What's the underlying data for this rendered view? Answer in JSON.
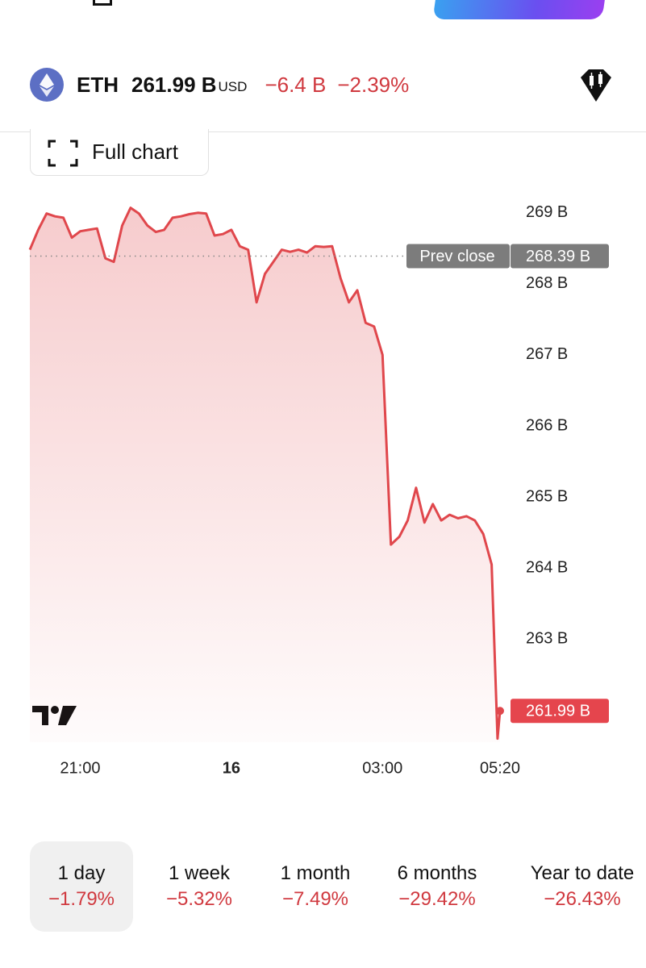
{
  "header": {
    "symbol": "ETH",
    "price": "261.99 B",
    "currency": "USD",
    "change": "−6.4 B",
    "change_pct": "−2.39%"
  },
  "full_chart_button": "Full chart",
  "chart_data": {
    "type": "line",
    "x": [
      "20:00",
      "20:10",
      "20:20",
      "20:30",
      "20:40",
      "20:50",
      "21:00",
      "21:10",
      "21:20",
      "21:30",
      "21:40",
      "21:50",
      "22:00",
      "22:10",
      "22:20",
      "22:30",
      "22:40",
      "22:50",
      "23:00",
      "23:10",
      "23:20",
      "23:30",
      "23:40",
      "23:50",
      "00:00",
      "00:10",
      "00:20",
      "00:30",
      "00:40",
      "00:50",
      "01:00",
      "01:10",
      "01:20",
      "01:30",
      "01:40",
      "01:50",
      "02:00",
      "02:10",
      "02:20",
      "02:30",
      "02:40",
      "02:50",
      "03:00",
      "03:10",
      "03:20",
      "03:30",
      "03:40",
      "03:50",
      "04:00",
      "04:10",
      "04:20",
      "04:30",
      "04:40",
      "04:50",
      "05:00",
      "05:10",
      "05:17",
      "05:20"
    ],
    "values": [
      268.48,
      268.76,
      268.99,
      268.95,
      268.93,
      268.65,
      268.74,
      268.76,
      268.78,
      268.36,
      268.31,
      268.82,
      269.07,
      268.99,
      268.82,
      268.73,
      268.76,
      268.93,
      268.95,
      268.98,
      269.0,
      268.99,
      268.68,
      268.7,
      268.76,
      268.53,
      268.48,
      267.74,
      268.14,
      268.31,
      268.48,
      268.45,
      268.48,
      268.44,
      268.53,
      268.52,
      268.53,
      268.08,
      267.74,
      267.91,
      267.45,
      267.4,
      267.0,
      264.33,
      264.44,
      264.67,
      265.13,
      264.64,
      264.9,
      264.67,
      264.75,
      264.7,
      264.73,
      264.67,
      264.48,
      264.05,
      261.6,
      261.99
    ],
    "color": "#e0474c",
    "last_value_label": "261.99 B",
    "prev_close": {
      "label": "Prev close",
      "value": 268.39,
      "value_label": "268.39 B"
    },
    "xlim": [
      "20:00",
      "05:20"
    ],
    "xticks": [
      "21:00",
      {
        "value": "00:00",
        "label": "16"
      },
      "03:00",
      "05:20"
    ],
    "ylim": [
      261.55,
      269.27
    ],
    "yticks": [
      {
        "value": 269,
        "label": "269 B"
      },
      {
        "value": 268,
        "label": "268 B"
      },
      {
        "value": 267,
        "label": "267 B"
      },
      {
        "value": 266,
        "label": "266 B"
      },
      {
        "value": 265,
        "label": "265 B"
      },
      {
        "value": 264,
        "label": "264 B"
      },
      {
        "value": 263,
        "label": "263 B"
      }
    ]
  },
  "periods": [
    {
      "label": "1 day",
      "change": "−1.79%"
    },
    {
      "label": "1 week",
      "change": "−5.32%"
    },
    {
      "label": "1 month",
      "change": "−7.49%"
    },
    {
      "label": "6 months",
      "change": "−29.42%"
    },
    {
      "label": "Year to date",
      "change": "−26.43%"
    }
  ]
}
